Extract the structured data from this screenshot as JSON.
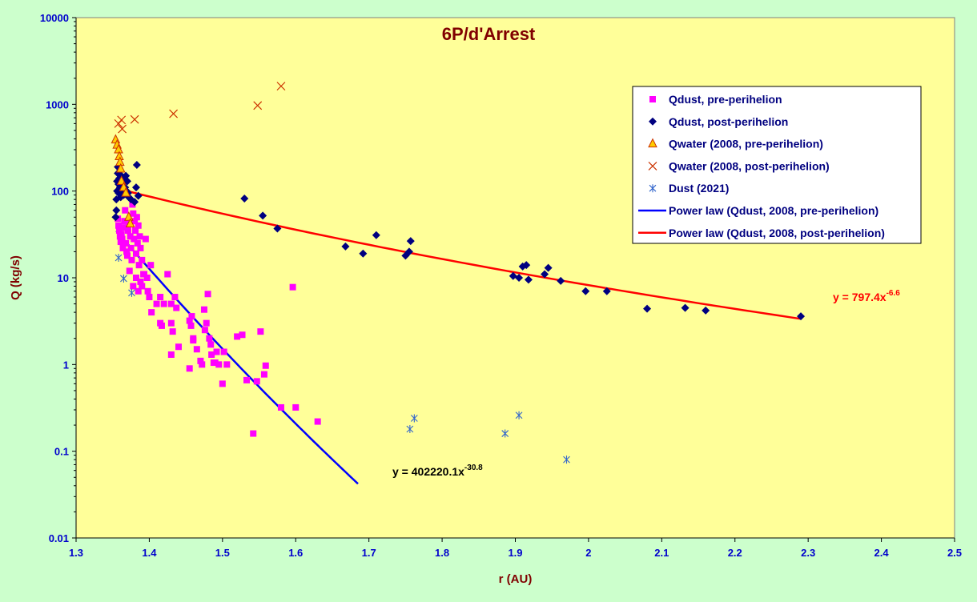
{
  "chart_data": {
    "type": "scatter",
    "title": "6P/d'Arrest",
    "xlabel": "r (AU)",
    "ylabel": "Q (kg/s)",
    "xlim": [
      1.3,
      2.5
    ],
    "ylim": [
      0.01,
      10000
    ],
    "yscale": "log",
    "x_ticks": [
      "1.3",
      "1.4",
      "1.5",
      "1.6",
      "1.7",
      "1.8",
      "1.9",
      "2",
      "2.1",
      "2.2",
      "2.3",
      "2.4",
      "2.5"
    ],
    "y_ticks": [
      "0.01",
      "0.1",
      "1",
      "10",
      "100",
      "1000",
      "10000"
    ],
    "grid": false,
    "legend_position": "top-right",
    "colors": {
      "plot_background": "#ffff99",
      "page_background": "#ccffcc",
      "pre_dust": "#ff00ff",
      "post_dust": "#000080",
      "water_pre_fill": "#ffcc00",
      "water_pre_edge": "#cc3300",
      "water_post": "#cc3300",
      "dust2021": "#3366cc",
      "fit_pre": "#0000ff",
      "fit_post": "#ff0000"
    },
    "series": [
      {
        "name": "Qdust, pre-perihelion",
        "marker": "square",
        "points": [
          [
            1.357,
            48
          ],
          [
            1.358,
            40
          ],
          [
            1.359,
            35
          ],
          [
            1.36,
            30
          ],
          [
            1.361,
            26
          ],
          [
            1.362,
            32
          ],
          [
            1.363,
            28
          ],
          [
            1.364,
            22
          ],
          [
            1.365,
            38
          ],
          [
            1.366,
            45
          ],
          [
            1.367,
            60
          ],
          [
            1.368,
            25
          ],
          [
            1.369,
            20
          ],
          [
            1.37,
            18
          ],
          [
            1.371,
            35
          ],
          [
            1.372,
            42
          ],
          [
            1.373,
            12
          ],
          [
            1.374,
            30
          ],
          [
            1.375,
            22
          ],
          [
            1.376,
            16
          ],
          [
            1.377,
            70
          ],
          [
            1.378,
            55
          ],
          [
            1.379,
            28
          ],
          [
            1.38,
            45
          ],
          [
            1.381,
            35
          ],
          [
            1.382,
            19
          ],
          [
            1.383,
            50
          ],
          [
            1.384,
            25
          ],
          [
            1.385,
            40
          ],
          [
            1.386,
            14
          ],
          [
            1.387,
            30
          ],
          [
            1.388,
            22
          ],
          [
            1.39,
            16
          ],
          [
            1.392,
            11
          ],
          [
            1.395,
            28
          ],
          [
            1.378,
            8
          ],
          [
            1.382,
            10
          ],
          [
            1.385,
            7
          ],
          [
            1.388,
            9
          ],
          [
            1.39,
            8
          ],
          [
            1.393,
            11
          ],
          [
            1.397,
            10
          ],
          [
            1.398,
            7
          ],
          [
            1.4,
            6
          ],
          [
            1.402,
            14
          ],
          [
            1.403,
            4
          ],
          [
            1.41,
            5
          ],
          [
            1.415,
            6
          ],
          [
            1.415,
            3
          ],
          [
            1.417,
            2.8
          ],
          [
            1.42,
            5
          ],
          [
            1.425,
            11
          ],
          [
            1.43,
            5
          ],
          [
            1.43,
            3
          ],
          [
            1.432,
            2.4
          ],
          [
            1.43,
            1.3
          ],
          [
            1.435,
            6
          ],
          [
            1.437,
            4.5
          ],
          [
            1.44,
            1.6
          ],
          [
            1.455,
            3.2
          ],
          [
            1.457,
            2.8
          ],
          [
            1.458,
            3.6
          ],
          [
            1.46,
            2
          ],
          [
            1.46,
            1.9
          ],
          [
            1.465,
            1.5
          ],
          [
            1.47,
            1.1
          ],
          [
            1.472,
            1.0
          ],
          [
            1.455,
            0.9
          ],
          [
            1.475,
            4.3
          ],
          [
            1.476,
            2.5
          ],
          [
            1.478,
            3
          ],
          [
            1.48,
            6.5
          ],
          [
            1.482,
            2
          ],
          [
            1.484,
            1.7
          ],
          [
            1.485,
            1.3
          ],
          [
            1.488,
            1.05
          ],
          [
            1.49,
            1.05
          ],
          [
            1.492,
            1.4
          ],
          [
            1.495,
            1.0
          ],
          [
            1.5,
            0.6
          ],
          [
            1.502,
            1.4
          ],
          [
            1.506,
            1.0
          ],
          [
            1.52,
            2.1
          ],
          [
            1.527,
            2.2
          ],
          [
            1.533,
            0.66
          ],
          [
            1.547,
            0.64
          ],
          [
            1.552,
            2.4
          ],
          [
            1.557,
            0.77
          ],
          [
            1.559,
            0.97
          ],
          [
            1.542,
            0.16
          ],
          [
            1.58,
            0.32
          ],
          [
            1.596,
            7.8
          ],
          [
            1.6,
            0.32
          ],
          [
            1.63,
            0.22
          ]
        ]
      },
      {
        "name": "Qdust, post-perihelion",
        "marker": "diamond",
        "points": [
          [
            1.354,
            50
          ],
          [
            1.355,
            60
          ],
          [
            1.355,
            80
          ],
          [
            1.356,
            100
          ],
          [
            1.356,
            130
          ],
          [
            1.357,
            160
          ],
          [
            1.357,
            190
          ],
          [
            1.358,
            120
          ],
          [
            1.358,
            95
          ],
          [
            1.359,
            140
          ],
          [
            1.36,
            110
          ],
          [
            1.36,
            170
          ],
          [
            1.361,
            85
          ],
          [
            1.362,
            130
          ],
          [
            1.362,
            150
          ],
          [
            1.363,
            100
          ],
          [
            1.364,
            120
          ],
          [
            1.365,
            90
          ],
          [
            1.366,
            140
          ],
          [
            1.367,
            110
          ],
          [
            1.368,
            150
          ],
          [
            1.369,
            100
          ],
          [
            1.37,
            130
          ],
          [
            1.371,
            95
          ],
          [
            1.372,
            85
          ],
          [
            1.375,
            80
          ],
          [
            1.38,
            75
          ],
          [
            1.382,
            110
          ],
          [
            1.383,
            200
          ],
          [
            1.385,
            88
          ],
          [
            1.53,
            82
          ],
          [
            1.555,
            52
          ],
          [
            1.575,
            37
          ],
          [
            1.668,
            23
          ],
          [
            1.692,
            19
          ],
          [
            1.71,
            31
          ],
          [
            1.75,
            18
          ],
          [
            1.755,
            20
          ],
          [
            1.757,
            26.5
          ],
          [
            1.897,
            10.5
          ],
          [
            1.905,
            10
          ],
          [
            1.91,
            13.5
          ],
          [
            1.915,
            14
          ],
          [
            1.918,
            9.5
          ],
          [
            1.94,
            11
          ],
          [
            1.945,
            13
          ],
          [
            1.962,
            9.2
          ],
          [
            1.996,
            7
          ],
          [
            2.025,
            7
          ],
          [
            2.08,
            4.4
          ],
          [
            2.132,
            4.5
          ],
          [
            2.16,
            4.2
          ],
          [
            2.29,
            3.6
          ]
        ]
      },
      {
        "name": "Qwater (2008, pre-perihelion)",
        "marker": "triangle",
        "points": [
          [
            1.354,
            390
          ],
          [
            1.356,
            340
          ],
          [
            1.358,
            300
          ],
          [
            1.359,
            250
          ],
          [
            1.36,
            215
          ],
          [
            1.361,
            180
          ],
          [
            1.362,
            130
          ],
          [
            1.365,
            110
          ],
          [
            1.368,
            95
          ],
          [
            1.372,
            50
          ],
          [
            1.374,
            42
          ]
        ]
      },
      {
        "name": "Qwater (2008, post-perihelion)",
        "marker": "x",
        "points": [
          [
            1.358,
            600
          ],
          [
            1.362,
            660
          ],
          [
            1.363,
            520
          ],
          [
            1.38,
            670
          ],
          [
            1.433,
            780
          ],
          [
            1.548,
            970
          ],
          [
            1.58,
            1620
          ]
        ]
      },
      {
        "name": "Dust (2021)",
        "marker": "star",
        "points": [
          [
            1.358,
            17
          ],
          [
            1.365,
            9.8
          ],
          [
            1.376,
            6.7
          ],
          [
            1.756,
            0.18
          ],
          [
            1.762,
            0.24
          ],
          [
            1.886,
            0.16
          ],
          [
            1.905,
            0.26
          ],
          [
            1.97,
            0.08
          ]
        ]
      }
    ],
    "fits": [
      {
        "name": "Power law (Qdust, 2008, pre-perihelion)",
        "A": 402220.1,
        "n": -30.8,
        "x_range": [
          1.355,
          1.685
        ],
        "label": "y = 402220.1x",
        "label_exp": "-30.8"
      },
      {
        "name": "Power law (Qdust, 2008, post-perihelion)",
        "A": 797.4,
        "n": -6.6,
        "x_range": [
          1.36,
          2.29
        ],
        "label": "y = 797.4x",
        "label_exp": "-6.6"
      }
    ]
  }
}
